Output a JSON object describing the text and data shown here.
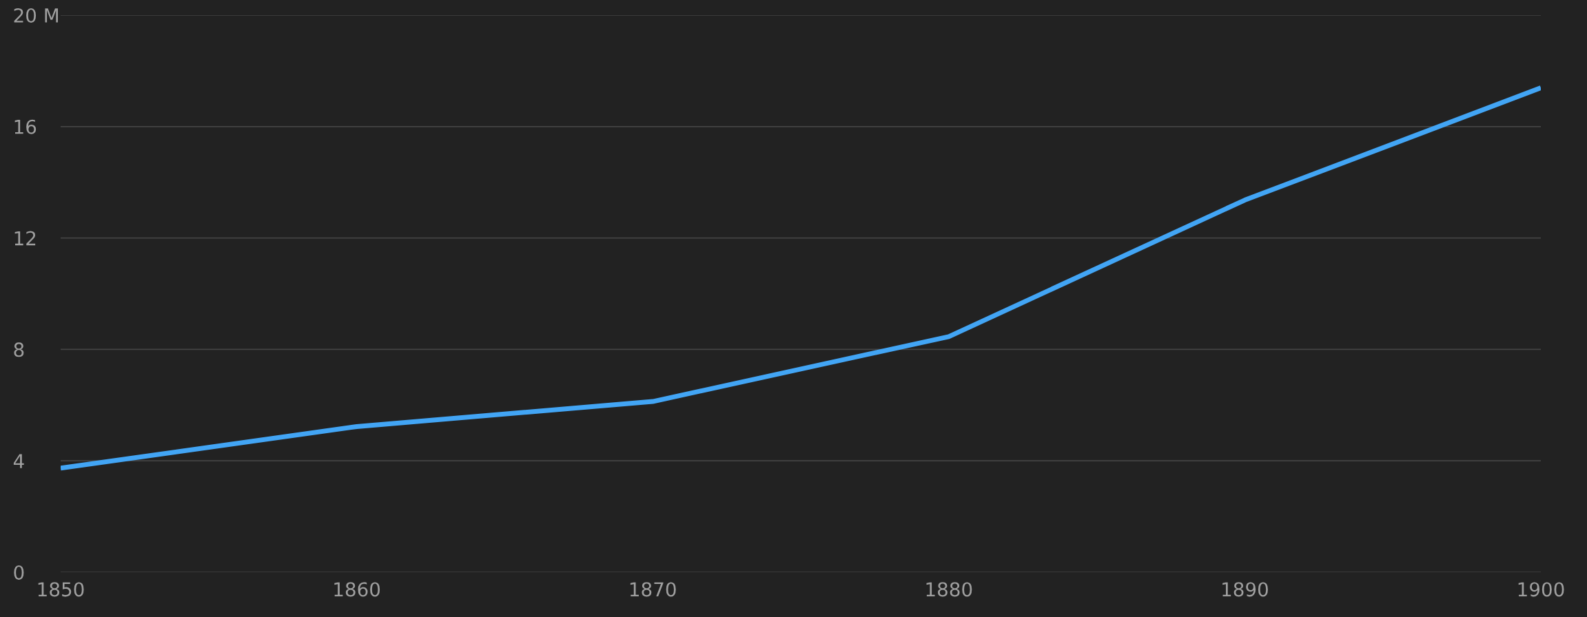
{
  "chart_data": {
    "type": "line",
    "x": [
      1850,
      1860,
      1870,
      1880,
      1890,
      1900
    ],
    "series": [
      {
        "color": "#42a5f5",
        "values": [
          3.74,
          5.23,
          6.13,
          8.46,
          13.36,
          17.39
        ]
      }
    ],
    "xlim": [
      1850,
      1900
    ],
    "xticks": [
      1850,
      1860,
      1870,
      1880,
      1890,
      1900
    ],
    "ylim": [
      0,
      20
    ],
    "yticks": [
      0,
      4,
      8,
      12,
      16,
      {
        "value": 20,
        "label": "20 M"
      }
    ],
    "grid": "y",
    "marker": "none",
    "line_style": "solid"
  }
}
